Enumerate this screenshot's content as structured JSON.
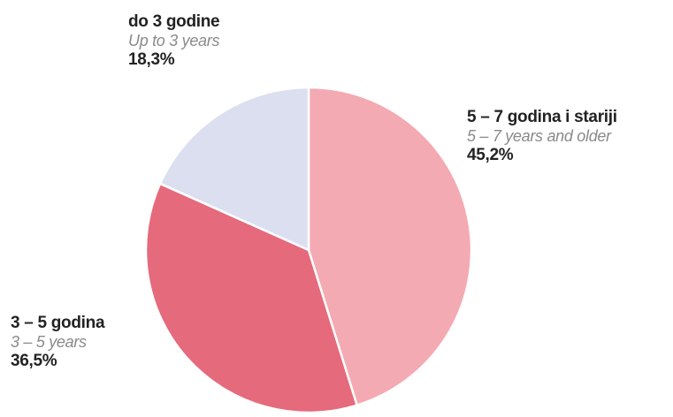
{
  "chart_data": {
    "type": "pie",
    "slices": [
      {
        "label": "5 – 7 godina i stariji",
        "label_en": "5 – 7 years and older",
        "value": 45.2,
        "value_label": "45,2%",
        "color": "#f4aab2"
      },
      {
        "label": "3 – 5 godina",
        "label_en": "3 – 5 years",
        "value": 36.5,
        "value_label": "36,5%",
        "color": "#e56a7c"
      },
      {
        "label": "do 3 godine",
        "label_en": "Up to 3 years",
        "value": 18.3,
        "value_label": "18,3%",
        "color": "#dcdff0"
      }
    ],
    "start_angle": "12 o'clock",
    "direction": "clockwise"
  }
}
